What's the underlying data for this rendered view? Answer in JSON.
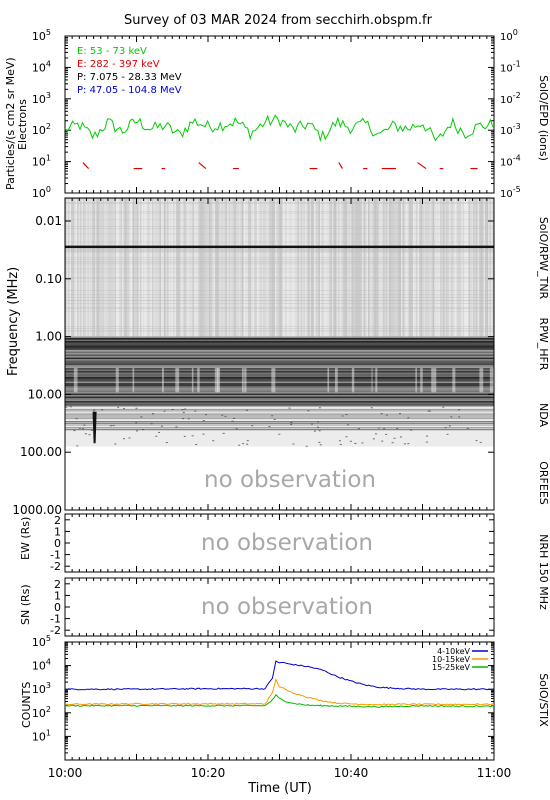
{
  "title": "Survey of 03 MAR 2024 from secchirh.obspm.fr",
  "chart_data": [
    {
      "type": "line",
      "panel": "SolO/EPD",
      "ylabel": "Particles/(s cm2 sr MeV)",
      "ylabel2": "Electrons",
      "y2label": "(ions)",
      "right_label": "SolO/EPD (ions)",
      "yscale": "log",
      "ylim": [
        1,
        100000
      ],
      "y2lim": [
        1e-05,
        1
      ],
      "yticks": [
        "10^0",
        "10^1",
        "10^2",
        "10^3",
        "10^4",
        "10^5"
      ],
      "y2ticks": [
        "10^-5",
        "10^-4",
        "10^-3",
        "10^-2",
        "10^-1",
        "10^0"
      ],
      "x_range": [
        "10:00",
        "11:00"
      ],
      "series": [
        {
          "name": "E: 53 - 73 keV",
          "color": "#00cc00",
          "x_minutes": [
            0,
            2,
            4,
            6,
            8,
            10,
            12,
            14,
            16,
            18,
            20,
            22,
            24,
            26,
            28,
            30,
            32,
            34,
            36,
            38,
            40,
            42,
            44,
            46,
            48,
            50,
            52,
            54,
            56,
            58,
            60
          ],
          "values": [
            100,
            150,
            60,
            180,
            90,
            200,
            110,
            140,
            70,
            200,
            130,
            150,
            190,
            80,
            180,
            220,
            100,
            160,
            60,
            180,
            120,
            160,
            70,
            140,
            110,
            180,
            40,
            180,
            80,
            140,
            150
          ]
        },
        {
          "name": "E: 282 - 397 keV",
          "color": "#dd0000",
          "segments_x_minutes": [
            [
              2.5,
              3.3
            ],
            [
              9.6,
              10.8
            ],
            [
              13.5,
              14
            ],
            [
              18.7,
              19.7
            ],
            [
              23.5,
              24.3
            ],
            [
              34.2,
              35.3
            ],
            [
              38.3,
              38.8
            ],
            [
              41.7,
              42.3
            ],
            [
              44.3,
              46.3
            ],
            [
              49.3,
              50.5
            ],
            [
              52.4,
              52.9
            ],
            [
              56.7,
              57.7
            ]
          ],
          "level": 6
        },
        {
          "name": "P: 7.075 - 28.33 MeV",
          "color": "#000000",
          "values": []
        },
        {
          "name": "P: 47.05 - 104.8 MeV",
          "color": "#0000cc",
          "values": []
        }
      ]
    },
    {
      "type": "heatmap",
      "panel": "radio spectrogram",
      "ylabel": "Frequency (MHz)",
      "yscale": "log",
      "ylim": [
        0.004,
        1000
      ],
      "yticks": [
        "0.01",
        "0.10",
        "1.00",
        "10.00",
        "100.00",
        "1000.00"
      ],
      "x_range": [
        "10:00",
        "11:00"
      ],
      "bands": [
        {
          "name": "SolO/RPW_TNR",
          "range_mhz": [
            0.004,
            1
          ]
        },
        {
          "name": "RPW_HFR",
          "range_mhz": [
            1,
            16
          ]
        },
        {
          "name": "NDA",
          "range_mhz": [
            10,
            80
          ]
        },
        {
          "name": "ORFEES",
          "range_mhz": [
            140,
            1000
          ],
          "status": "no observation"
        }
      ],
      "features": [
        {
          "name": "dark line",
          "freq_mhz": 0.028,
          "x_range": [
            "10:00",
            "11:00"
          ]
        },
        {
          "name": "burst",
          "time": "10:04",
          "freq_mhz": [
            20,
            70
          ]
        }
      ]
    },
    {
      "type": "line",
      "panel": "NRH 150 MHz",
      "ylabel": "EW (Rs)",
      "yticks": [
        "2",
        "1",
        "0",
        "-1",
        "-2"
      ],
      "ylim": [
        -2.5,
        2.5
      ],
      "status": "no observation"
    },
    {
      "type": "line",
      "panel": "NRH 150 MHz",
      "ylabel": "SN (Rs)",
      "yticks": [
        "2",
        "1",
        "0",
        "-1",
        "-2"
      ],
      "ylim": [
        -2.5,
        2.5
      ],
      "status": "no observation"
    },
    {
      "type": "line",
      "panel": "SolO/STIX",
      "ylabel": "COUNTS",
      "yscale": "log",
      "ylim": [
        1,
        100000
      ],
      "yticks": [
        "10^1",
        "10^2",
        "10^3",
        "10^4",
        "10^5"
      ],
      "xlabel": "Time (UT)",
      "x_range": [
        "10:00",
        "11:00"
      ],
      "xticks": [
        "10:00",
        "10:20",
        "10:40",
        "11:00"
      ],
      "series": [
        {
          "name": "4-10keV",
          "color": "#0000cc",
          "x_minutes": [
            0,
            10,
            20,
            28,
            29,
            29.5,
            30,
            30.5,
            31,
            32,
            34,
            36,
            38,
            40,
            42,
            44,
            46,
            48,
            50,
            55,
            60
          ],
          "values": [
            1000,
            1000,
            1050,
            1050,
            3000,
            15000,
            13000,
            14000,
            12000,
            11000,
            9000,
            6500,
            3500,
            2200,
            1500,
            1200,
            1100,
            1050,
            1000,
            1000,
            1000
          ]
        },
        {
          "name": "10-15keV",
          "color": "#ff9900",
          "x_minutes": [
            0,
            10,
            20,
            28,
            29,
            29.5,
            30,
            30.5,
            31,
            32,
            34,
            36,
            38,
            40,
            42,
            44,
            46,
            50,
            55,
            60
          ],
          "values": [
            230,
            240,
            240,
            240,
            700,
            2500,
            1300,
            1100,
            900,
            700,
            450,
            320,
            260,
            240,
            230,
            220,
            230,
            230,
            230,
            230
          ]
        },
        {
          "name": "15-25keV",
          "color": "#00bb00",
          "x_minutes": [
            0,
            10,
            20,
            28,
            29,
            29.5,
            30,
            31,
            32,
            34,
            36,
            40,
            44,
            50,
            55,
            60
          ],
          "values": [
            200,
            200,
            200,
            200,
            350,
            550,
            400,
            300,
            250,
            210,
            200,
            190,
            180,
            200,
            190,
            190
          ]
        }
      ]
    }
  ],
  "right_labels": [
    "SolO/EPD (ions)",
    "SolO/RPW_TNR",
    "RPW_HFR",
    "NDA",
    "ORFEES",
    "NRH 150 MHz",
    "SolO/STIX"
  ],
  "no_observation": "no observation"
}
